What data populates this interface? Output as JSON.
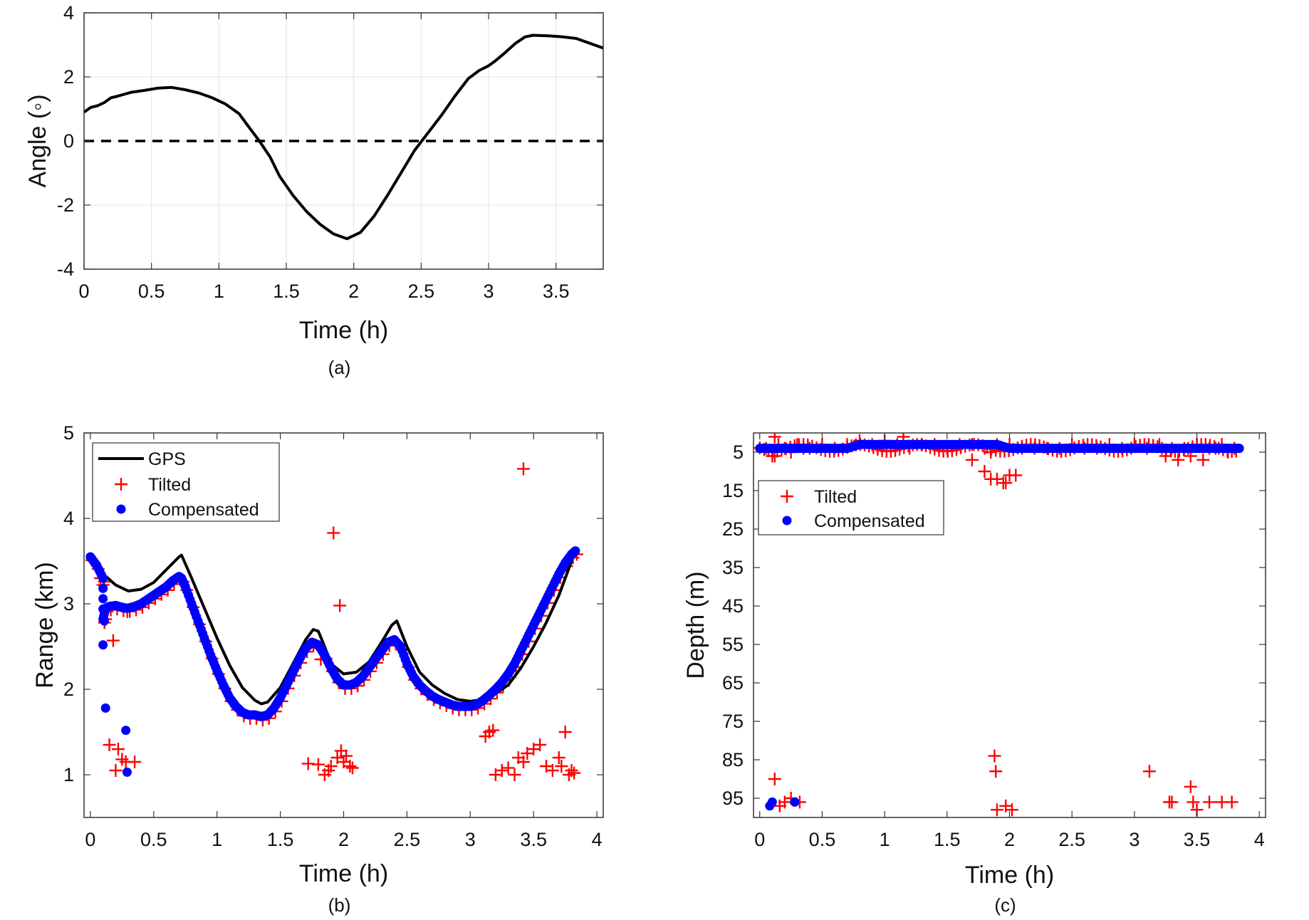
{
  "chart_data": [
    {
      "id": "a",
      "type": "line",
      "caption": "(a)",
      "xlabel": "Time (h)",
      "ylabel": "Angle (◦)",
      "xlim": [
        0,
        3.85
      ],
      "ylim": [
        -4,
        4
      ],
      "xticks": [
        0,
        0.5,
        1,
        1.5,
        2,
        2.5,
        3,
        3.5
      ],
      "xtick_labels": [
        "0",
        "0.5",
        "1",
        "1.5",
        "2",
        "2.5",
        "3",
        "3.5"
      ],
      "yticks": [
        -4,
        -2,
        0,
        2,
        4
      ],
      "ytick_labels": [
        "-4",
        "-2",
        "0",
        "2",
        "4"
      ],
      "grid": true,
      "series": [
        {
          "style": "solid",
          "color": "#000000",
          "x": [
            0,
            0.05,
            0.1,
            0.15,
            0.2,
            0.25,
            0.35,
            0.45,
            0.55,
            0.65,
            0.75,
            0.85,
            0.95,
            1.05,
            1.15,
            1.22,
            1.3,
            1.38,
            1.45,
            1.55,
            1.65,
            1.75,
            1.85,
            1.95,
            2.05,
            2.15,
            2.25,
            2.35,
            2.45,
            2.55,
            2.65,
            2.75,
            2.85,
            2.93,
            3.0,
            3.05,
            3.12,
            3.2,
            3.27,
            3.33,
            3.45,
            3.55,
            3.65,
            3.75,
            3.85
          ],
          "y": [
            0.9,
            1.05,
            1.1,
            1.2,
            1.35,
            1.4,
            1.52,
            1.58,
            1.65,
            1.67,
            1.6,
            1.5,
            1.35,
            1.15,
            0.85,
            0.45,
            0.0,
            -0.5,
            -1.1,
            -1.7,
            -2.2,
            -2.6,
            -2.9,
            -3.05,
            -2.85,
            -2.35,
            -1.7,
            -1.0,
            -0.3,
            0.25,
            0.8,
            1.4,
            1.95,
            2.2,
            2.35,
            2.5,
            2.75,
            3.05,
            3.25,
            3.3,
            3.28,
            3.25,
            3.2,
            3.05,
            2.9
          ]
        },
        {
          "style": "dashed",
          "color": "#000000",
          "x": [
            0,
            3.85
          ],
          "y": [
            0,
            0
          ]
        }
      ]
    },
    {
      "id": "b",
      "type": "scatter",
      "caption": "(b)",
      "xlabel": "Time (h)",
      "ylabel": "Range (km)",
      "xlim": [
        -0.05,
        4.05
      ],
      "ylim": [
        0.5,
        5
      ],
      "xticks": [
        0,
        0.5,
        1,
        1.5,
        2,
        2.5,
        3,
        3.5,
        4
      ],
      "xtick_labels": [
        "0",
        "0.5",
        "1",
        "1.5",
        "2",
        "2.5",
        "3",
        "3.5",
        "4"
      ],
      "yticks": [
        1,
        2,
        3,
        4,
        5
      ],
      "ytick_labels": [
        "1",
        "2",
        "3",
        "4",
        "5"
      ],
      "grid": false,
      "legend_position": "top-left",
      "legend": [
        "GPS",
        "Tilted",
        "Compensated"
      ],
      "series": [
        {
          "name": "GPS",
          "kind": "line",
          "color": "#000000",
          "x": [
            0,
            0.1,
            0.2,
            0.3,
            0.4,
            0.5,
            0.6,
            0.7,
            0.72,
            0.8,
            0.9,
            1.0,
            1.1,
            1.2,
            1.3,
            1.35,
            1.4,
            1.5,
            1.6,
            1.7,
            1.76,
            1.8,
            1.85,
            1.9,
            2.0,
            2.1,
            2.2,
            2.3,
            2.38,
            2.42,
            2.5,
            2.6,
            2.7,
            2.8,
            2.9,
            3.0,
            3.1,
            3.2,
            3.3,
            3.4,
            3.5,
            3.6,
            3.7,
            3.8,
            3.83
          ],
          "y": [
            3.55,
            3.35,
            3.22,
            3.15,
            3.17,
            3.25,
            3.4,
            3.55,
            3.57,
            3.3,
            2.95,
            2.6,
            2.28,
            2.02,
            1.87,
            1.83,
            1.85,
            2.02,
            2.3,
            2.58,
            2.7,
            2.68,
            2.5,
            2.3,
            2.18,
            2.2,
            2.32,
            2.55,
            2.75,
            2.8,
            2.5,
            2.2,
            2.05,
            1.95,
            1.88,
            1.86,
            1.88,
            1.95,
            2.05,
            2.25,
            2.5,
            2.78,
            3.1,
            3.5,
            3.62
          ]
        },
        {
          "name": "Tilted",
          "kind": "plus",
          "color": "#ff0000",
          "x": [
            0.08,
            0.1,
            0.12,
            0.15,
            0.18,
            0.2,
            0.22,
            0.25,
            0.28,
            0.35,
            1.72,
            1.8,
            1.85,
            1.88,
            1.9,
            1.95,
            1.98,
            2.0,
            2.02,
            2.05,
            2.07,
            1.82,
            1.92,
            1.97,
            3.12,
            3.15,
            3.18,
            3.2,
            3.25,
            3.3,
            3.35,
            3.38,
            3.42,
            3.45,
            3.5,
            3.55,
            3.6,
            3.65,
            3.7,
            3.72,
            3.75,
            3.78,
            3.8,
            3.82,
            3.42
          ],
          "y": [
            3.3,
            3.22,
            2.82,
            1.35,
            2.57,
            1.05,
            1.3,
            1.18,
            1.15,
            1.15,
            1.13,
            1.12,
            1.0,
            1.05,
            1.1,
            1.2,
            1.28,
            1.15,
            1.22,
            1.1,
            1.08,
            2.35,
            3.83,
            2.98,
            1.45,
            1.5,
            1.52,
            1.0,
            1.05,
            1.08,
            1.0,
            1.2,
            1.15,
            1.25,
            1.3,
            1.35,
            1.1,
            1.05,
            1.2,
            1.1,
            1.5,
            1.0,
            1.05,
            1.02,
            4.58
          ]
        },
        {
          "name": "Compensated",
          "kind": "dot",
          "color": "#0000ff",
          "x": [
            0.0,
            0.05,
            0.1,
            0.1,
            0.12,
            0.15,
            0.2,
            0.25,
            0.28,
            0.3,
            0.35,
            0.4,
            0.45,
            0.5,
            0.55,
            0.6,
            0.65,
            0.7,
            0.72,
            0.75,
            0.8,
            0.85,
            0.9,
            0.95,
            1.0,
            1.05,
            1.1,
            1.15,
            1.2,
            1.25,
            1.3,
            1.35,
            1.4,
            1.45,
            1.5,
            1.55,
            1.6,
            1.65,
            1.7,
            1.75,
            1.8,
            1.85,
            1.9,
            1.95,
            2.0,
            2.05,
            2.1,
            2.15,
            2.2,
            2.25,
            2.3,
            2.35,
            2.4,
            2.45,
            2.5,
            2.55,
            2.6,
            2.65,
            2.7,
            2.75,
            2.8,
            2.85,
            2.9,
            2.95,
            3.0,
            3.05,
            3.1,
            3.15,
            3.2,
            3.25,
            3.3,
            3.35,
            3.4,
            3.45,
            3.5,
            3.55,
            3.6,
            3.65,
            3.7,
            3.75,
            3.8,
            3.83,
            0.1,
            0.11,
            0.12,
            0.28,
            0.29
          ],
          "y": [
            3.55,
            3.45,
            3.3,
            2.82,
            2.95,
            2.97,
            2.98,
            2.96,
            2.95,
            2.95,
            2.97,
            3.0,
            3.05,
            3.1,
            3.15,
            3.2,
            3.27,
            3.32,
            3.3,
            3.2,
            3.0,
            2.8,
            2.6,
            2.4,
            2.22,
            2.05,
            1.9,
            1.8,
            1.73,
            1.7,
            1.7,
            1.68,
            1.7,
            1.78,
            1.9,
            2.05,
            2.2,
            2.35,
            2.48,
            2.55,
            2.52,
            2.4,
            2.25,
            2.12,
            2.05,
            2.05,
            2.08,
            2.15,
            2.25,
            2.35,
            2.45,
            2.55,
            2.58,
            2.5,
            2.3,
            2.15,
            2.05,
            1.98,
            1.92,
            1.88,
            1.85,
            1.82,
            1.8,
            1.8,
            1.8,
            1.82,
            1.87,
            1.93,
            2.0,
            2.08,
            2.18,
            2.3,
            2.45,
            2.6,
            2.75,
            2.9,
            3.05,
            3.2,
            3.35,
            3.48,
            3.58,
            3.62,
            2.52,
            2.8,
            1.78,
            1.52,
            1.03
          ]
        }
      ]
    },
    {
      "id": "c",
      "type": "scatter",
      "caption": "(c)",
      "xlabel": "Time (h)",
      "ylabel": "Depth (m)",
      "xlim": [
        -0.05,
        4.05
      ],
      "ylim": [
        100,
        0
      ],
      "y_inverted": true,
      "xticks": [
        0,
        0.5,
        1,
        1.5,
        2,
        2.5,
        3,
        3.5,
        4
      ],
      "xtick_labels": [
        "0",
        "0.5",
        "1",
        "1.5",
        "2",
        "2.5",
        "3",
        "3.5",
        "4"
      ],
      "yticks": [
        5,
        15,
        25,
        35,
        45,
        55,
        65,
        75,
        85,
        95
      ],
      "ytick_labels": [
        "5",
        "15",
        "25",
        "35",
        "45",
        "55",
        "65",
        "75",
        "85",
        "95"
      ],
      "grid": false,
      "legend_position": "upper-left",
      "legend": [
        "Tilted",
        "Compensated"
      ],
      "series": [
        {
          "name": "Tilted",
          "kind": "plus",
          "color": "#ff0000",
          "x": [
            0.05,
            0.1,
            0.15,
            0.2,
            0.25,
            0.3,
            0.35,
            0.4,
            0.5,
            0.6,
            0.7,
            0.8,
            0.9,
            1.0,
            1.1,
            1.2,
            1.3,
            1.4,
            1.5,
            1.6,
            1.7,
            1.8,
            1.9,
            2.0,
            2.1,
            2.2,
            2.3,
            2.4,
            2.5,
            2.6,
            2.7,
            2.8,
            2.9,
            3.0,
            3.1,
            3.2,
            3.3,
            3.4,
            3.5,
            3.6,
            3.7,
            3.8,
            0.12,
            0.12,
            0.1,
            1.15,
            1.7,
            1.8,
            1.85,
            1.9,
            1.95,
            1.97,
            2.0,
            2.05,
            3.25,
            3.35,
            3.45,
            3.55,
            3.65,
            3.75,
            0.12,
            0.16,
            0.2,
            0.25,
            0.32,
            1.88,
            1.89,
            1.9,
            1.97,
            2.02,
            1.85,
            3.12,
            3.28,
            3.3,
            3.45,
            3.47,
            3.5,
            3.6,
            3.7,
            3.78
          ],
          "y": [
            4,
            5,
            3,
            4,
            5,
            3,
            4,
            4,
            3,
            4,
            3,
            2,
            3,
            2,
            3,
            4,
            3,
            3,
            4,
            3,
            3,
            4,
            3,
            3,
            4,
            4,
            4,
            4,
            3,
            4,
            4,
            3,
            4,
            3,
            4,
            3,
            4,
            4,
            3,
            4,
            3,
            4,
            1,
            6,
            6,
            1,
            7,
            10,
            12,
            12,
            13,
            13,
            11,
            11,
            6,
            7,
            6,
            7,
            4,
            5,
            90,
            97,
            96,
            95,
            96,
            84,
            88,
            98,
            97,
            98,
            5,
            88,
            96,
            96,
            92,
            96,
            98,
            96,
            96,
            96
          ]
        },
        {
          "name": "Compensated",
          "kind": "dot",
          "color": "#0000ff",
          "x": [
            0.0,
            0.1,
            0.2,
            0.3,
            0.4,
            0.5,
            0.6,
            0.7,
            0.8,
            0.9,
            1.0,
            1.1,
            1.2,
            1.3,
            1.4,
            1.5,
            1.6,
            1.7,
            1.8,
            1.9,
            2.0,
            2.1,
            2.2,
            2.3,
            2.4,
            2.5,
            2.6,
            2.7,
            2.8,
            2.9,
            3.0,
            3.1,
            3.2,
            3.3,
            3.4,
            3.5,
            3.6,
            3.7,
            3.8,
            3.84,
            0.08,
            0.1,
            0.28
          ],
          "y": [
            4,
            4,
            4,
            4,
            4,
            4,
            4,
            4,
            3,
            3,
            3,
            3,
            3,
            3,
            3,
            3,
            3,
            3,
            3,
            3,
            4,
            4,
            4,
            4,
            4,
            4,
            4,
            4,
            4,
            4,
            4,
            4,
            4,
            4,
            4,
            4,
            4,
            4,
            4,
            4,
            97,
            96,
            96
          ]
        }
      ]
    }
  ]
}
